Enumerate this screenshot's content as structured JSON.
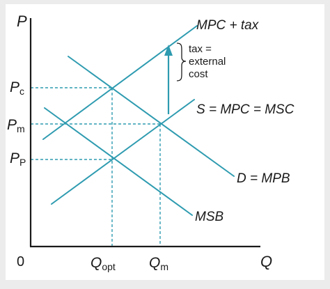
{
  "colors": {
    "panel": "#ffffff",
    "border": "#ececec",
    "axis": "#1a1a1a",
    "curve": "#2e9bb0",
    "guide": "#2e9bb0",
    "text": "#1a1a1a"
  },
  "axes": {
    "y_label": "P",
    "x_label": "Q",
    "origin_label": "0"
  },
  "y_ticks": {
    "pc": {
      "main": "P",
      "sub": "c"
    },
    "pm": {
      "main": "P",
      "sub": "m"
    },
    "pp": {
      "main": "P",
      "sub": "P"
    }
  },
  "x_ticks": {
    "qopt": {
      "main": "Q",
      "sub": "opt"
    },
    "qm": {
      "main": "Q",
      "sub": "m"
    }
  },
  "curves": {
    "mpc_tax": "MPC + tax",
    "supply": "S = MPC = MSC",
    "demand": "D = MPB",
    "msb": "MSB"
  },
  "annotation": {
    "lines": [
      "tax =",
      "external",
      "cost"
    ]
  }
}
